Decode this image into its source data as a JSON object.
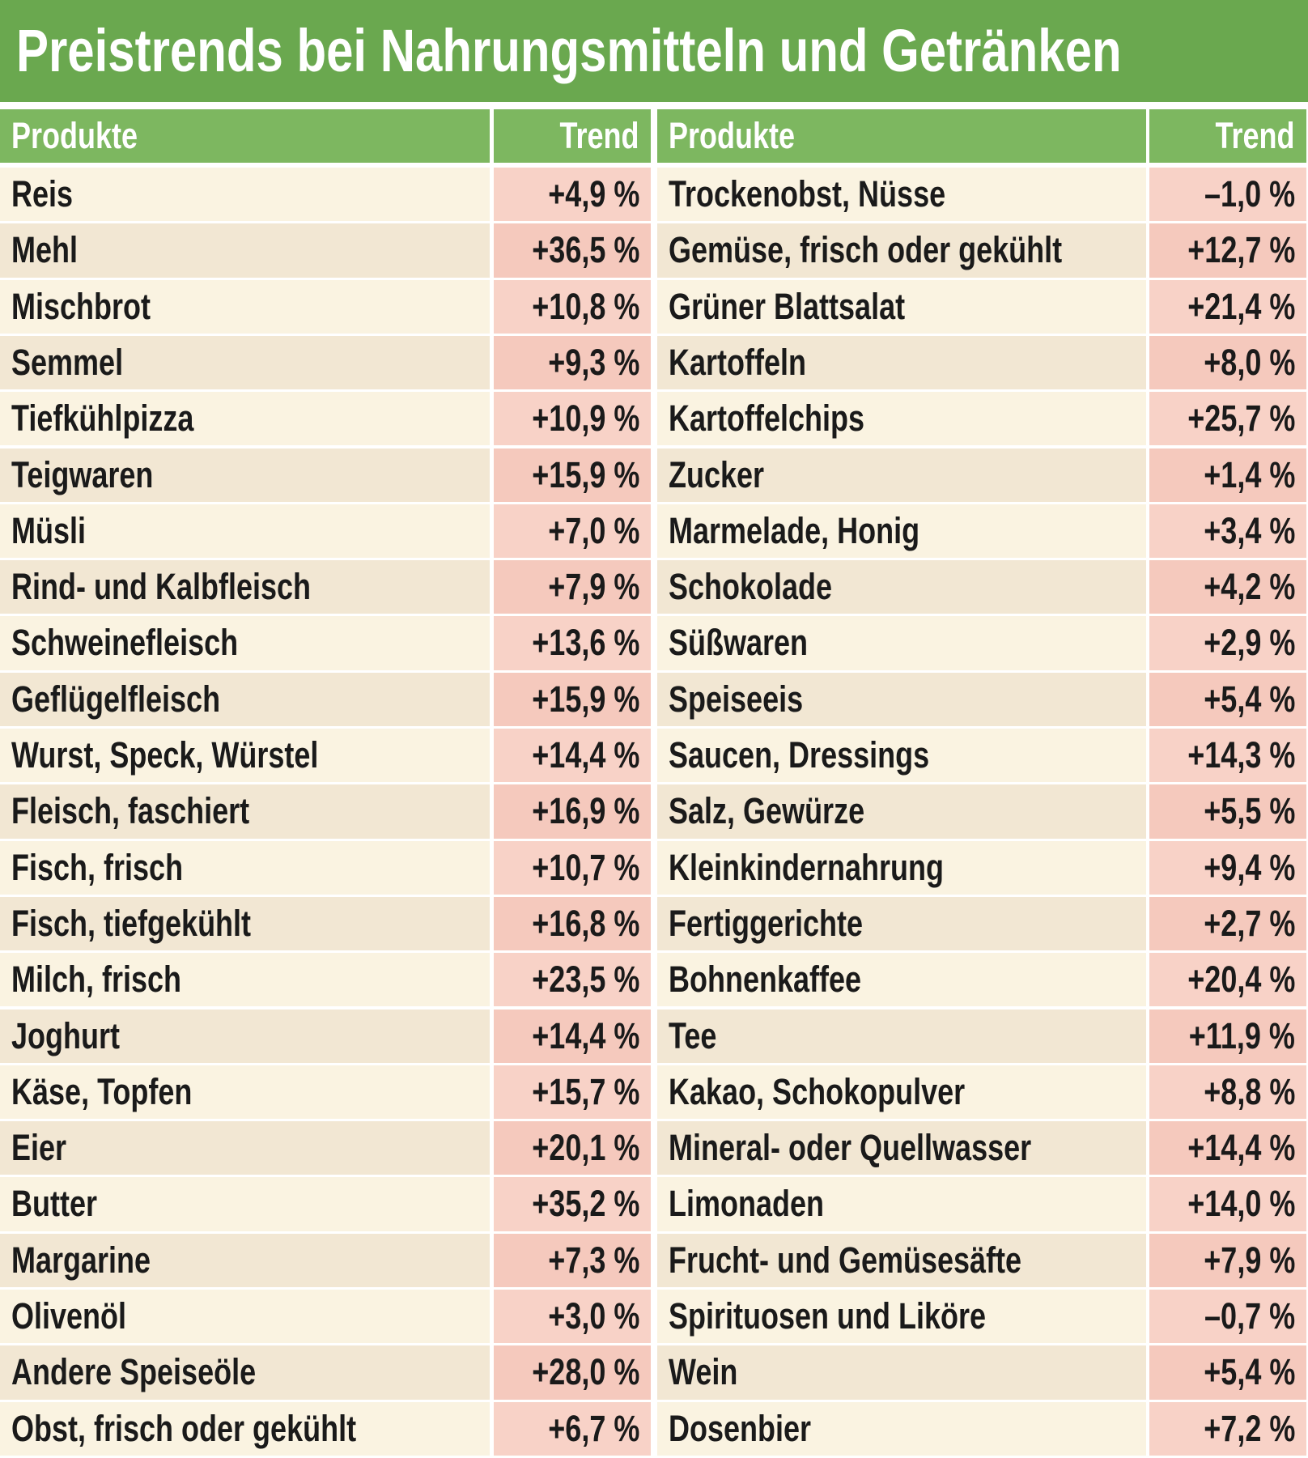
{
  "header": {
    "title": "Preistrends bei Nahrungsmitteln und Getränken"
  },
  "table": {
    "columns": [
      "Produkte",
      "Trend",
      "Produkte",
      "Trend"
    ],
    "rows": [
      [
        "Reis",
        "+4,9 %",
        "Trockenobst, Nüsse",
        "–1,0 %"
      ],
      [
        "Mehl",
        "+36,5 %",
        "Gemüse, frisch oder gekühlt",
        "+12,7 %"
      ],
      [
        "Mischbrot",
        "+10,8 %",
        "Grüner Blattsalat",
        "+21,4 %"
      ],
      [
        "Semmel",
        "+9,3 %",
        "Kartoffeln",
        "+8,0 %"
      ],
      [
        "Tiefkühlpizza",
        "+10,9 %",
        "Kartoffelchips",
        "+25,7 %"
      ],
      [
        "Teigwaren",
        "+15,9 %",
        "Zucker",
        "+1,4 %"
      ],
      [
        "Müsli",
        "+7,0 %",
        "Marmelade, Honig",
        "+3,4 %"
      ],
      [
        "Rind- und Kalbfleisch",
        "+7,9 %",
        "Schokolade",
        "+4,2 %"
      ],
      [
        "Schweinefleisch",
        "+13,6 %",
        "Süßwaren",
        "+2,9 %"
      ],
      [
        "Geflügelfleisch",
        "+15,9 %",
        "Speiseeis",
        "+5,4 %"
      ],
      [
        "Wurst, Speck, Würstel",
        "+14,4 %",
        "Saucen, Dressings",
        "+14,3 %"
      ],
      [
        "Fleisch, faschiert",
        "+16,9 %",
        "Salz, Gewürze",
        "+5,5 %"
      ],
      [
        "Fisch, frisch",
        "+10,7 %",
        "Kleinkindernahrung",
        "+9,4 %"
      ],
      [
        "Fisch, tiefgekühlt",
        "+16,8 %",
        "Fertiggerichte",
        "+2,7 %"
      ],
      [
        "Milch, frisch",
        "+23,5 %",
        "Bohnenkaffee",
        "+20,4 %"
      ],
      [
        "Joghurt",
        "+14,4 %",
        "Tee",
        "+11,9 %"
      ],
      [
        "Käse, Topfen",
        "+15,7 %",
        "Kakao, Schokopulver",
        "+8,8 %"
      ],
      [
        "Eier",
        "+20,1 %",
        "Mineral- oder Quellwasser",
        "+14,4 %"
      ],
      [
        "Butter",
        "+35,2 %",
        "Limonaden",
        "+14,0 %"
      ],
      [
        "Margarine",
        "+7,3 %",
        "Frucht- und Gemüsesäfte",
        "+7,9 %"
      ],
      [
        "Olivenöl",
        "+3,0 %",
        "Spirituosen und Liköre",
        "–0,7 %"
      ],
      [
        "Andere Speiseöle",
        "+28,0 %",
        "Wein",
        "+5,4 %"
      ],
      [
        "Obst, frisch oder gekühlt",
        "+6,7 %",
        "Dosenbier",
        "+7,2 %"
      ]
    ]
  }
}
